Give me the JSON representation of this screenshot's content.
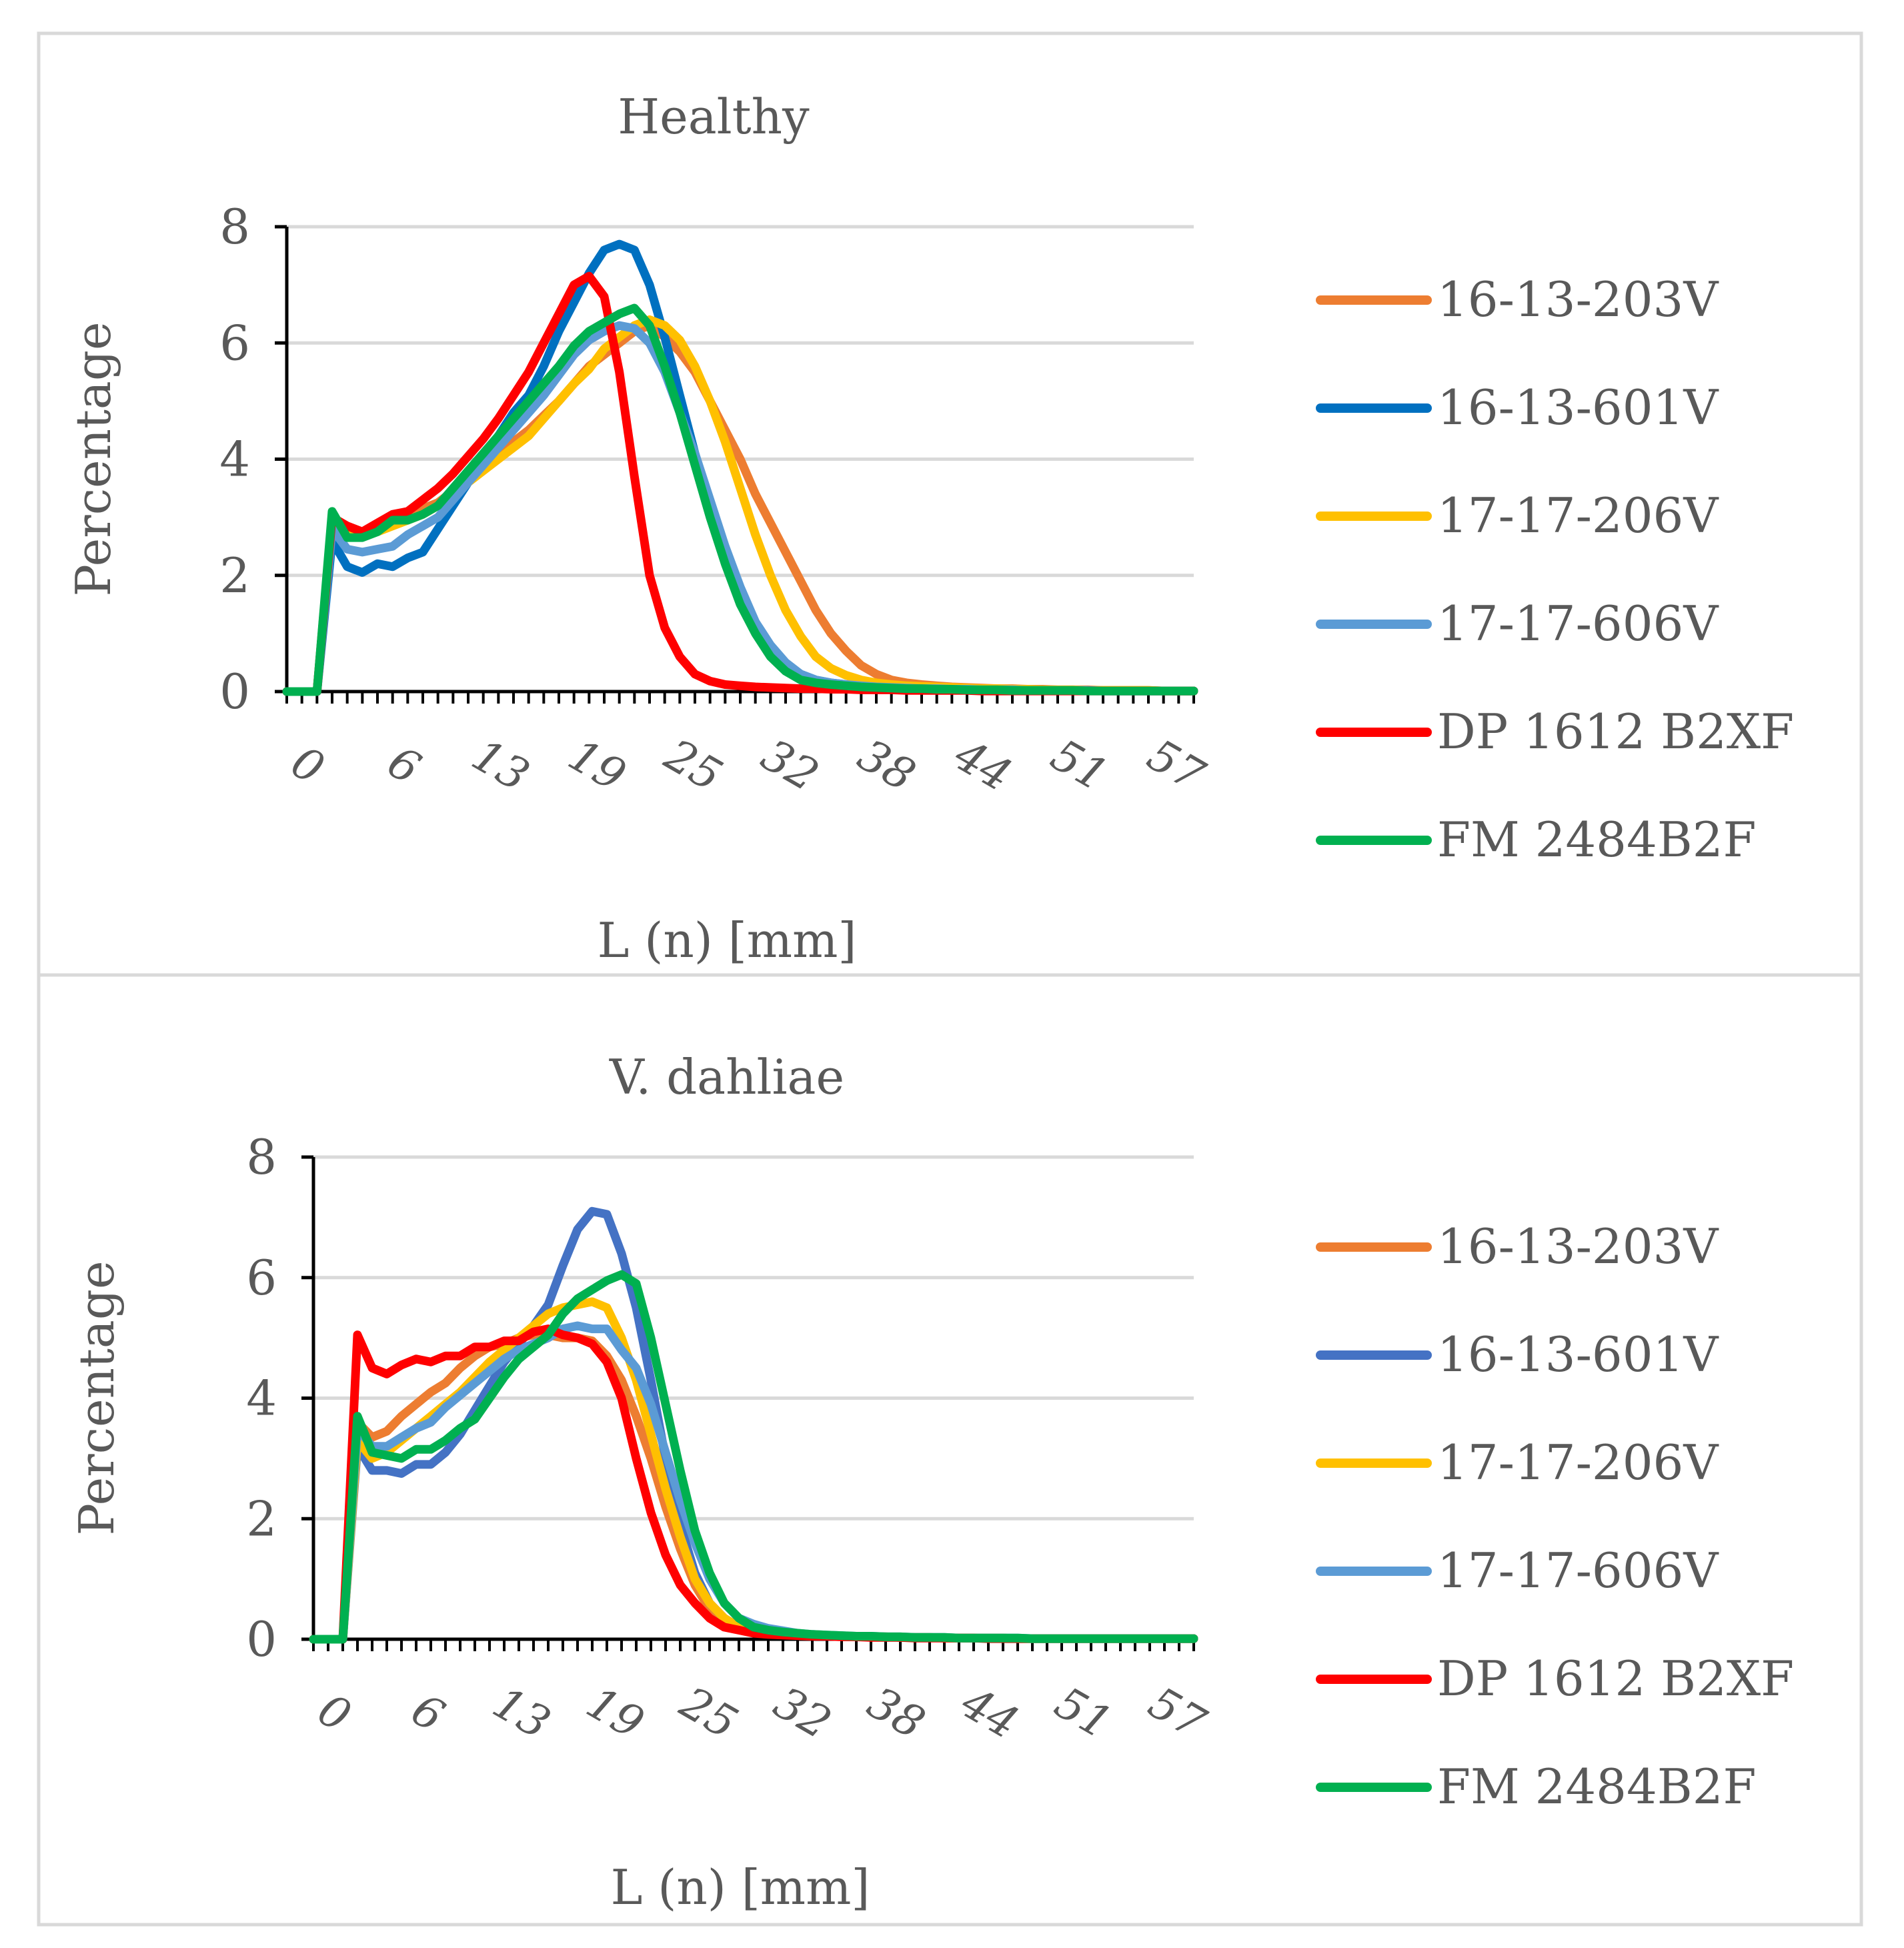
{
  "chart_data": [
    {
      "type": "line",
      "title": "Healthy",
      "xlabel": "L (n) [mm]",
      "ylabel": "Percentage",
      "ylim": [
        0,
        8
      ],
      "yticks": [
        0,
        2,
        4,
        6,
        8
      ],
      "xlim": [
        0,
        60
      ],
      "xtick_labels": [
        "0",
        "6",
        "13",
        "19",
        "25",
        "32",
        "38",
        "44",
        "51",
        "57"
      ],
      "x": [
        0,
        1,
        2,
        3,
        4,
        5,
        6,
        7,
        8,
        9,
        10,
        11,
        12,
        13,
        14,
        15,
        16,
        17,
        18,
        19,
        20,
        21,
        22,
        23,
        24,
        25,
        26,
        27,
        28,
        29,
        30,
        31,
        32,
        33,
        34,
        35,
        36,
        37,
        38,
        39,
        40,
        41,
        42,
        43,
        44,
        45,
        46,
        47,
        48,
        49,
        50,
        51,
        52,
        53,
        54,
        55,
        56,
        57,
        58,
        59,
        60
      ],
      "grid": true,
      "legend_position": "right",
      "series": [
        {
          "name": "16-13-203V",
          "color": "#ED7D31",
          "values": [
            0,
            0,
            0,
            3.0,
            2.8,
            2.75,
            2.85,
            2.95,
            3.05,
            3.15,
            3.25,
            3.45,
            3.7,
            3.9,
            4.1,
            4.3,
            4.5,
            4.75,
            5.0,
            5.3,
            5.6,
            5.8,
            6.0,
            6.2,
            6.3,
            6.1,
            5.85,
            5.5,
            5.0,
            4.5,
            4.0,
            3.4,
            2.9,
            2.4,
            1.9,
            1.4,
            1.0,
            0.7,
            0.45,
            0.3,
            0.2,
            0.15,
            0.12,
            0.1,
            0.08,
            0.07,
            0.06,
            0.05,
            0.05,
            0.04,
            0.04,
            0.03,
            0.03,
            0.03,
            0.02,
            0.02,
            0.02,
            0.02,
            0.01,
            0.01,
            0.01
          ]
        },
        {
          "name": "16-13-601V",
          "color": "#0070C0",
          "values": [
            0,
            0,
            0,
            2.6,
            2.15,
            2.05,
            2.2,
            2.15,
            2.3,
            2.4,
            2.8,
            3.2,
            3.6,
            4.0,
            4.4,
            4.8,
            5.1,
            5.6,
            6.2,
            6.7,
            7.2,
            7.6,
            7.7,
            7.6,
            7.0,
            6.1,
            5.1,
            4.1,
            3.2,
            2.4,
            1.7,
            1.1,
            0.7,
            0.45,
            0.3,
            0.2,
            0.15,
            0.12,
            0.1,
            0.08,
            0.07,
            0.06,
            0.05,
            0.05,
            0.04,
            0.04,
            0.03,
            0.03,
            0.03,
            0.02,
            0.02,
            0.02,
            0.02,
            0.02,
            0.01,
            0.01,
            0.01,
            0.01,
            0.01,
            0.01,
            0.01
          ]
        },
        {
          "name": "17-17-206V",
          "color": "#FFC000",
          "values": [
            0,
            0,
            0,
            3.0,
            2.7,
            2.7,
            2.75,
            2.85,
            2.95,
            3.05,
            3.2,
            3.4,
            3.6,
            3.8,
            4.0,
            4.2,
            4.4,
            4.7,
            5.0,
            5.3,
            5.55,
            5.9,
            6.1,
            6.3,
            6.4,
            6.3,
            6.05,
            5.6,
            5.0,
            4.3,
            3.5,
            2.7,
            2.0,
            1.4,
            0.95,
            0.6,
            0.4,
            0.28,
            0.2,
            0.15,
            0.12,
            0.1,
            0.09,
            0.08,
            0.07,
            0.06,
            0.05,
            0.05,
            0.04,
            0.04,
            0.03,
            0.03,
            0.03,
            0.02,
            0.02,
            0.02,
            0.02,
            0.02,
            0.01,
            0.01,
            0.01
          ]
        },
        {
          "name": "17-17-606V",
          "color": "#5B9BD5",
          "values": [
            0,
            0,
            0,
            2.8,
            2.45,
            2.4,
            2.45,
            2.5,
            2.7,
            2.85,
            3.0,
            3.3,
            3.6,
            3.9,
            4.2,
            4.5,
            4.8,
            5.1,
            5.45,
            5.8,
            6.05,
            6.2,
            6.3,
            6.25,
            6.0,
            5.5,
            4.8,
            4.1,
            3.3,
            2.5,
            1.8,
            1.2,
            0.8,
            0.5,
            0.3,
            0.2,
            0.15,
            0.12,
            0.1,
            0.08,
            0.07,
            0.06,
            0.05,
            0.05,
            0.04,
            0.04,
            0.03,
            0.03,
            0.03,
            0.02,
            0.02,
            0.02,
            0.02,
            0.02,
            0.01,
            0.01,
            0.01,
            0.01,
            0.01,
            0.01,
            0.01
          ]
        },
        {
          "name": "DP 1612 B2XF",
          "color": "#FF0000",
          "values": [
            0,
            0,
            0,
            3.0,
            2.85,
            2.75,
            2.9,
            3.05,
            3.1,
            3.3,
            3.5,
            3.75,
            4.05,
            4.35,
            4.7,
            5.1,
            5.5,
            6.0,
            6.5,
            7.0,
            7.15,
            6.8,
            5.5,
            3.7,
            2.0,
            1.1,
            0.6,
            0.3,
            0.18,
            0.12,
            0.1,
            0.08,
            0.07,
            0.06,
            0.05,
            0.05,
            0.04,
            0.04,
            0.03,
            0.03,
            0.03,
            0.02,
            0.02,
            0.02,
            0.02,
            0.02,
            0.01,
            0.01,
            0.01,
            0.01,
            0.01,
            0.01,
            0.01,
            0.01,
            0.01,
            0.01,
            0.01,
            0.01,
            0.01,
            0.01,
            0.01
          ]
        },
        {
          "name": "FM 2484B2F",
          "color": "#00B050",
          "values": [
            0,
            0,
            0,
            3.1,
            2.65,
            2.65,
            2.75,
            2.95,
            2.95,
            3.05,
            3.2,
            3.5,
            3.8,
            4.1,
            4.4,
            4.7,
            5.0,
            5.3,
            5.6,
            5.95,
            6.2,
            6.35,
            6.5,
            6.6,
            6.3,
            5.6,
            4.8,
            3.9,
            3.0,
            2.2,
            1.5,
            1.0,
            0.6,
            0.35,
            0.2,
            0.15,
            0.12,
            0.1,
            0.08,
            0.07,
            0.06,
            0.05,
            0.05,
            0.04,
            0.04,
            0.03,
            0.03,
            0.03,
            0.02,
            0.02,
            0.02,
            0.02,
            0.02,
            0.01,
            0.01,
            0.01,
            0.01,
            0.01,
            0.01,
            0.01,
            0.01
          ]
        }
      ]
    },
    {
      "type": "line",
      "title": "V. dahliae",
      "xlabel": "L (n) [mm]",
      "ylabel": "Percentage",
      "ylim": [
        0,
        8
      ],
      "yticks": [
        0,
        2,
        4,
        6,
        8
      ],
      "xlim": [
        0,
        60
      ],
      "xtick_labels": [
        "0",
        "6",
        "13",
        "19",
        "25",
        "32",
        "38",
        "44",
        "51",
        "57"
      ],
      "x": [
        0,
        1,
        2,
        3,
        4,
        5,
        6,
        7,
        8,
        9,
        10,
        11,
        12,
        13,
        14,
        15,
        16,
        17,
        18,
        19,
        20,
        21,
        22,
        23,
        24,
        25,
        26,
        27,
        28,
        29,
        30,
        31,
        32,
        33,
        34,
        35,
        36,
        37,
        38,
        39,
        40,
        41,
        42,
        43,
        44,
        45,
        46,
        47,
        48,
        49,
        50,
        51,
        52,
        53,
        54,
        55,
        56,
        57,
        58,
        59,
        60
      ],
      "grid": true,
      "legend_position": "right",
      "series": [
        {
          "name": "16-13-203V",
          "color": "#ED7D31",
          "values": [
            0,
            0,
            0,
            3.6,
            3.35,
            3.45,
            3.7,
            3.9,
            4.1,
            4.25,
            4.5,
            4.7,
            4.85,
            4.9,
            5.0,
            5.05,
            5.05,
            5.0,
            5.0,
            4.95,
            4.7,
            4.3,
            3.7,
            3.0,
            2.2,
            1.5,
            0.9,
            0.5,
            0.3,
            0.2,
            0.15,
            0.12,
            0.1,
            0.08,
            0.07,
            0.06,
            0.05,
            0.05,
            0.04,
            0.04,
            0.03,
            0.03,
            0.03,
            0.02,
            0.02,
            0.02,
            0.02,
            0.02,
            0.01,
            0.01,
            0.01,
            0.01,
            0.01,
            0.01,
            0.01,
            0.01,
            0.01,
            0.01,
            0.01,
            0.01,
            0.01
          ]
        },
        {
          "name": "16-13-601V",
          "color": "#4472C4",
          "values": [
            0,
            0,
            0,
            3.2,
            2.8,
            2.8,
            2.75,
            2.9,
            2.9,
            3.1,
            3.4,
            3.8,
            4.2,
            4.6,
            4.9,
            5.2,
            5.55,
            6.2,
            6.8,
            7.1,
            7.05,
            6.4,
            5.5,
            4.3,
            3.0,
            1.9,
            1.1,
            0.6,
            0.35,
            0.2,
            0.15,
            0.12,
            0.1,
            0.08,
            0.07,
            0.06,
            0.05,
            0.05,
            0.04,
            0.04,
            0.03,
            0.03,
            0.03,
            0.02,
            0.02,
            0.02,
            0.02,
            0.02,
            0.01,
            0.01,
            0.01,
            0.01,
            0.01,
            0.01,
            0.01,
            0.01,
            0.01,
            0.01,
            0.01,
            0.01,
            0.01
          ]
        },
        {
          "name": "17-17-206V",
          "color": "#FFC000",
          "values": [
            0,
            0,
            0,
            3.3,
            3.0,
            3.1,
            3.3,
            3.5,
            3.7,
            3.9,
            4.1,
            4.35,
            4.6,
            4.8,
            5.0,
            5.2,
            5.4,
            5.5,
            5.55,
            5.6,
            5.5,
            5.0,
            4.3,
            3.4,
            2.5,
            1.7,
            1.0,
            0.6,
            0.35,
            0.2,
            0.15,
            0.12,
            0.1,
            0.08,
            0.07,
            0.06,
            0.05,
            0.05,
            0.04,
            0.04,
            0.03,
            0.03,
            0.03,
            0.02,
            0.02,
            0.02,
            0.02,
            0.02,
            0.01,
            0.01,
            0.01,
            0.01,
            0.01,
            0.01,
            0.01,
            0.01,
            0.01,
            0.01,
            0.01,
            0.01,
            0.01
          ]
        },
        {
          "name": "17-17-606V",
          "color": "#5B9BD5",
          "values": [
            0,
            0,
            0,
            3.5,
            3.2,
            3.2,
            3.35,
            3.5,
            3.6,
            3.85,
            4.05,
            4.25,
            4.45,
            4.65,
            4.8,
            4.9,
            5.0,
            5.15,
            5.2,
            5.15,
            5.15,
            4.8,
            4.5,
            3.9,
            3.1,
            2.3,
            1.6,
            1.0,
            0.6,
            0.35,
            0.25,
            0.18,
            0.14,
            0.1,
            0.08,
            0.07,
            0.06,
            0.05,
            0.05,
            0.04,
            0.04,
            0.03,
            0.03,
            0.03,
            0.02,
            0.02,
            0.02,
            0.02,
            0.02,
            0.01,
            0.01,
            0.01,
            0.01,
            0.01,
            0.01,
            0.01,
            0.01,
            0.01,
            0.01,
            0.01,
            0.01
          ]
        },
        {
          "name": "DP 1612 B2XF",
          "color": "#FF0000",
          "values": [
            0,
            0,
            0,
            5.05,
            4.5,
            4.4,
            4.55,
            4.65,
            4.6,
            4.7,
            4.7,
            4.85,
            4.85,
            4.95,
            4.95,
            5.1,
            5.15,
            5.05,
            5.0,
            4.9,
            4.6,
            4.0,
            3.0,
            2.1,
            1.4,
            0.9,
            0.6,
            0.35,
            0.2,
            0.15,
            0.1,
            0.08,
            0.07,
            0.06,
            0.05,
            0.05,
            0.04,
            0.04,
            0.03,
            0.03,
            0.03,
            0.02,
            0.02,
            0.02,
            0.02,
            0.02,
            0.01,
            0.01,
            0.01,
            0.01,
            0.01,
            0.01,
            0.01,
            0.01,
            0.01,
            0.01,
            0.01,
            0.01,
            0.01,
            0.01,
            0.01
          ]
        },
        {
          "name": "FM 2484B2F",
          "color": "#00B050",
          "values": [
            0,
            0,
            0,
            3.7,
            3.1,
            3.05,
            3.0,
            3.15,
            3.15,
            3.3,
            3.5,
            3.65,
            4.0,
            4.35,
            4.65,
            4.85,
            5.05,
            5.4,
            5.65,
            5.8,
            5.95,
            6.05,
            5.9,
            5.0,
            3.9,
            2.8,
            1.8,
            1.1,
            0.6,
            0.35,
            0.2,
            0.15,
            0.12,
            0.1,
            0.08,
            0.07,
            0.06,
            0.05,
            0.05,
            0.04,
            0.04,
            0.03,
            0.03,
            0.03,
            0.02,
            0.02,
            0.02,
            0.02,
            0.02,
            0.01,
            0.01,
            0.01,
            0.01,
            0.01,
            0.01,
            0.01,
            0.01,
            0.01,
            0.01,
            0.01,
            0.01
          ]
        }
      ]
    }
  ]
}
